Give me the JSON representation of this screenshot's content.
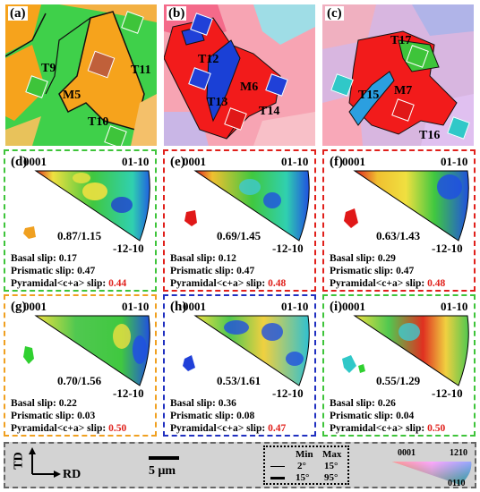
{
  "maps": [
    {
      "label": "(a)",
      "twins": [
        "T9",
        "M5",
        "T11",
        "T10"
      ]
    },
    {
      "label": "(b)",
      "twins": [
        "T12",
        "T13",
        "M6",
        "T14"
      ]
    },
    {
      "label": "(c)",
      "twins": [
        "T17",
        "T15",
        "M7",
        "T16"
      ]
    }
  ],
  "ipf_panels": [
    {
      "label": "(d)",
      "border_color": "#3ec43a",
      "ratio": "0.87/1.15",
      "basal": "0.17",
      "prismatic": "0.47",
      "pyramidal": "0.44",
      "dot_color": "#f0a020"
    },
    {
      "label": "(e)",
      "border_color": "#e0201b",
      "ratio": "0.69/1.45",
      "basal": "0.12",
      "prismatic": "0.47",
      "pyramidal": "0.48",
      "dot_color": "#e01818"
    },
    {
      "label": "(f)",
      "border_color": "#e0201b",
      "ratio": "0.63/1.43",
      "basal": "0.29",
      "prismatic": "0.47",
      "pyramidal": "0.48",
      "dot_color": "#e01818"
    },
    {
      "label": "(g)",
      "border_color": "#f0a020",
      "ratio": "0.70/1.56",
      "basal": "0.22",
      "prismatic": "0.03",
      "pyramidal": "0.50",
      "dot_color": "#30d030"
    },
    {
      "label": "(h)",
      "border_color": "#2030c0",
      "ratio": "0.53/1.61",
      "basal": "0.36",
      "prismatic": "0.08",
      "pyramidal": "0.47",
      "dot_color": "#2040d8"
    },
    {
      "label": "(i)",
      "border_color": "#3ec43a",
      "ratio": "0.55/1.29",
      "basal": "0.26",
      "prismatic": "0.04",
      "pyramidal": "0.50",
      "dot_color": "#30c8c8"
    }
  ],
  "ipf_poles": {
    "p0001": "0001",
    "p01_10": "01-10",
    "p_12_10": "-12-10"
  },
  "slip_labels": {
    "basal": "Basal slip:",
    "prismatic": "Prismatic slip:",
    "pyramidal": "Pyramidal<c+a>  slip:"
  },
  "legend": {
    "td": "TD",
    "rd": "RD",
    "scale": "5 μm",
    "min_header": "Min",
    "max_header": "Max",
    "row1_min": "2°",
    "row1_max": "15°",
    "row2_min": "15°",
    "row2_max": "95°",
    "key_0001": "0001",
    "key_1210": "1210",
    "key_0110": "0110"
  },
  "colors": {
    "green": "#3ec43a",
    "red": "#e0201b",
    "orange": "#f0a020",
    "blue": "#2030c0"
  }
}
